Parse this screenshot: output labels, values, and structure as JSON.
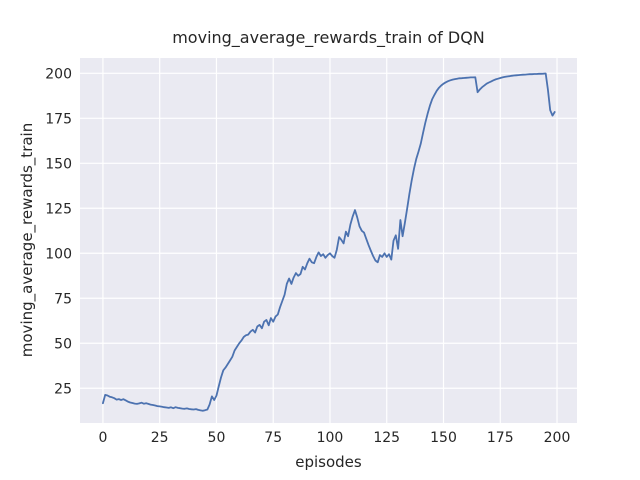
{
  "chart_data": {
    "type": "line",
    "title": "moving_average_rewards_train of DQN",
    "xlabel": "episodes",
    "ylabel": "moving_average_rewards_train",
    "x_ticks": [
      0,
      25,
      50,
      75,
      100,
      125,
      150,
      175,
      200
    ],
    "y_ticks": [
      25,
      50,
      75,
      100,
      125,
      150,
      175,
      200
    ],
    "xlim": [
      -10.1,
      208.8
    ],
    "ylim": [
      5.7,
      208.5
    ],
    "grid": true,
    "legend_position": "none",
    "style": {
      "line_color": "#4c72b0",
      "axes_bg": "#eaeaf2",
      "grid_color": "#ffffff",
      "text_color": "#262626"
    },
    "series": [
      {
        "name": "moving_average_rewards_train",
        "x_is_index": true,
        "x_range": [
          0,
          199
        ],
        "y": [
          16.7,
          21.3,
          21.0,
          20.3,
          20.0,
          19.5,
          18.7,
          19.0,
          18.5,
          18.9,
          18.3,
          17.6,
          17.1,
          16.8,
          16.5,
          16.3,
          16.6,
          17.0,
          16.4,
          16.7,
          16.3,
          15.9,
          15.7,
          15.4,
          15.1,
          14.9,
          14.7,
          14.5,
          14.3,
          14.1,
          14.4,
          13.9,
          14.5,
          14.1,
          13.9,
          13.7,
          13.6,
          13.8,
          13.5,
          13.3,
          13.2,
          13.4,
          13.0,
          12.7,
          12.5,
          12.8,
          13.2,
          16.0,
          20.5,
          18.5,
          21.0,
          26.0,
          31.0,
          35.0,
          36.5,
          38.5,
          40.5,
          42.5,
          46.0,
          48.0,
          50.0,
          51.5,
          53.5,
          54.5,
          54.8,
          56.5,
          57.5,
          55.9,
          59.3,
          60.2,
          58.3,
          62.0,
          63.0,
          60.0,
          64.0,
          62.0,
          64.8,
          66.0,
          70.0,
          73.5,
          77.0,
          83.0,
          86.0,
          83.0,
          86.5,
          89.0,
          87.5,
          88.5,
          92.5,
          91.0,
          94.5,
          97.0,
          95.0,
          94.5,
          98.0,
          100.5,
          98.5,
          99.5,
          97.5,
          99.0,
          100.0,
          98.5,
          97.5,
          102.0,
          109.0,
          107.5,
          105.5,
          112.0,
          109.5,
          116.0,
          120.5,
          124.0,
          120.0,
          115.0,
          112.5,
          111.5,
          108.0,
          104.5,
          101.5,
          98.5,
          96.0,
          95.0,
          99.0,
          98.0,
          100.0,
          98.0,
          99.5,
          96.5,
          107.0,
          110.0,
          102.5,
          118.5,
          109.5,
          117.0,
          125.0,
          133.0,
          140.5,
          147.0,
          152.5,
          156.5,
          161.0,
          167.0,
          172.5,
          177.5,
          182.0,
          185.5,
          188.0,
          190.3,
          192.0,
          193.2,
          194.2,
          195.0,
          195.6,
          196.1,
          196.5,
          196.8,
          197.0,
          197.2,
          197.3,
          197.4,
          197.5,
          197.6,
          197.7,
          197.7,
          197.8,
          189.5,
          191.0,
          192.3,
          193.3,
          194.2,
          194.9,
          195.5,
          196.1,
          196.6,
          197.0,
          197.4,
          197.7,
          198.0,
          198.2,
          198.4,
          198.6,
          198.8,
          198.9,
          199.0,
          199.1,
          199.2,
          199.3,
          199.4,
          199.5,
          199.5,
          199.6,
          199.6,
          199.7,
          199.7,
          199.8,
          199.9,
          191.0,
          179.5,
          176.5,
          178.5
        ]
      }
    ]
  }
}
